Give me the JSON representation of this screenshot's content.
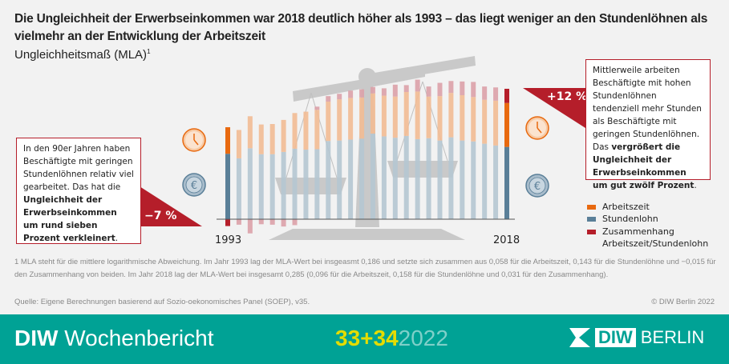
{
  "title": "Die Ungleichheit der Erwerbseinkommen war 2018 deutlich höher als 1993 – das liegt weniger an den Stundenlöhnen als vielmehr an der Entwicklung der Arbeitszeit",
  "subtitle": "Ungleichheitsmaß (MLA)",
  "subtitle_sup": "1",
  "annotation_left": {
    "text": "In den 90er Jahren haben Beschäftigte mit geringen Stundenlöhnen relativ viel gearbeitet. Das hat die ",
    "bold": "Ungleichheit der Erwerbseinkommen um rund sieben Prozent verkleinert",
    "end": ".",
    "badge": "−7 %"
  },
  "annotation_right": {
    "text": "Mittlerweile arbeiten Beschäftigte mit hohen Stundenlöhnen tendenziell mehr Stunden als Beschäftigte mit geringen Stundenlöhnen. Das ",
    "bold": "vergrößert die Ungleichheit der Erwerbseinkommen um gut zwölf Prozent",
    "end": ".",
    "badge": "+12 %"
  },
  "icons": [
    "clock-icon",
    "euro-icon"
  ],
  "colors": {
    "arbeitszeit": "#e8690f",
    "stundenlohn": "#5a7f98",
    "zusammenhang": "#b51e2a",
    "arbeitszeit_faded": "#f2bb94",
    "stundenlohn_faded": "#b5c7d2",
    "zusammenhang_faded": "#dba1a8",
    "banner": "#00a295",
    "accent": "#e4dc00"
  },
  "chart_data": {
    "type": "bar",
    "stacked": true,
    "x": [
      1993,
      1994,
      1995,
      1996,
      1997,
      1998,
      1999,
      2000,
      2001,
      2002,
      2003,
      2004,
      2005,
      2006,
      2007,
      2008,
      2009,
      2010,
      2011,
      2012,
      2013,
      2014,
      2015,
      2016,
      2017,
      2018
    ],
    "tick_labels": [
      "1993",
      "2018"
    ],
    "series": [
      {
        "name": "Arbeitszeit",
        "values": [
          0.058,
          0.062,
          0.07,
          0.065,
          0.066,
          0.07,
          0.078,
          0.083,
          0.086,
          0.086,
          0.09,
          0.091,
          0.09,
          0.088,
          0.089,
          0.09,
          0.096,
          0.104,
          0.091,
          0.097,
          0.097,
          0.099,
          0.097,
          0.096,
          0.098,
          0.096
        ]
      },
      {
        "name": "Stundenlohn",
        "values": [
          0.143,
          0.133,
          0.155,
          0.142,
          0.142,
          0.147,
          0.154,
          0.152,
          0.153,
          0.171,
          0.172,
          0.174,
          0.176,
          0.187,
          0.181,
          0.178,
          0.182,
          0.175,
          0.177,
          0.172,
          0.179,
          0.172,
          0.17,
          0.165,
          0.161,
          0.158
        ]
      },
      {
        "name": "Zusammenhang Arbeitszeit/Stundenlohn",
        "values": [
          -0.015,
          -0.012,
          -0.031,
          -0.011,
          -0.012,
          -0.016,
          -0.013,
          0.0,
          0.007,
          0.012,
          0.012,
          0.016,
          0.018,
          0.014,
          0.016,
          0.026,
          0.015,
          0.026,
          0.022,
          0.029,
          0.026,
          0.03,
          0.033,
          0.029,
          0.029,
          0.031
        ]
      }
    ],
    "legend": [
      "Arbeitszeit",
      "Stundenlohn",
      "Zusammenhang",
      "Arbeitszeit/Stundenlohn"
    ],
    "legend_position": "right",
    "highlighted": [
      1993,
      2018
    ]
  },
  "footnote": "1  MLA steht für die mittlere logarithmische Abweichung. Im Jahr 1993 lag der MLA-Wert bei insgeasmt 0,186 und setzte sich zusammen aus 0,058 für die Arbeitszeit, 0,143 für die Stundenlöhne und −0,015 für den Zusammenhang von beiden. Im Jahr 2018 lag der MLA-Wert bei insgesamt 0,285 (0,096 für die Arbeitszeit, 0,158 für die Stundenlöhne und 0,031 für den Zusammenhang).",
  "source": "Quelle: Eigene Berechnungen basierend auf Sozio-oekonomisches Panel (SOEP), v35.",
  "copyright": "© DIW Berlin 2022",
  "banner": {
    "brand": "DIW",
    "name": "Wochenbericht",
    "issue": "33+34",
    "year": "2022",
    "logo_a": "DIW",
    "logo_b": "BERLIN"
  }
}
